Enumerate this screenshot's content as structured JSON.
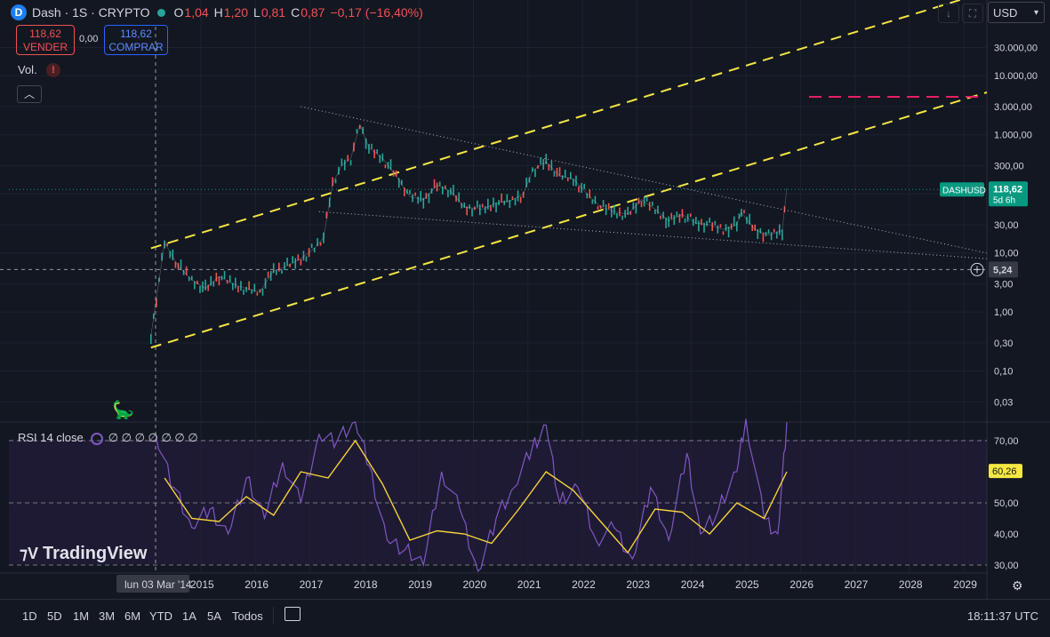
{
  "header": {
    "symbol": "Dash · 1S · CRYPTO",
    "ohlc": [
      {
        "label": "O",
        "value": "1,04"
      },
      {
        "label": "H",
        "value": "1,20"
      },
      {
        "label": "L",
        "value": "0,81"
      },
      {
        "label": "C",
        "value": "0,87"
      }
    ],
    "change": "−0,17 (−16,40%)",
    "sell_price": "118,62",
    "sell_label": "VENDER",
    "spread": "0,00",
    "buy_price": "118,62",
    "buy_label": "COMPRAR",
    "volume_label": "Vol.",
    "currency": "USD"
  },
  "colors": {
    "background": "#131722",
    "channel": "#f5e642",
    "candle_up": "#26a69a",
    "candle_down": "#ef5350",
    "rsi_line": "#7e57c2",
    "rsi_ma": "#f5d23c",
    "price_badge": "#089981",
    "target_line": "#e91e63"
  },
  "chart_data": [
    {
      "type": "line",
      "scale": "log",
      "y_ticks": [
        "30.000,00",
        "10.000,00",
        "3.000,00",
        "1.000,00",
        "300,00",
        "100,00",
        "30,00",
        "10,00",
        "3,00",
        "1,00",
        "0,30",
        "0,10",
        "0,03"
      ],
      "x_ticks": [
        "2015",
        "2016",
        "2017",
        "2018",
        "2019",
        "2020",
        "2021",
        "2022",
        "2023",
        "2024",
        "2025",
        "2026",
        "2027",
        "2028",
        "2029"
      ],
      "crosshair_date": "lun 03 Mar '14",
      "crosshair_price": "5,24",
      "last_price_label": "DASHUSD",
      "last_price": "118,62",
      "countdown": "5d 6h",
      "series": [
        {
          "x": [
            "2014-02",
            "2014-05",
            "2014-08",
            "2014-11",
            "2015-02",
            "2015-05",
            "2015-08",
            "2015-11",
            "2016-02",
            "2016-05",
            "2016-08",
            "2016-11",
            "2017-02",
            "2017-04",
            "2017-06",
            "2017-08",
            "2017-10",
            "2017-12",
            "2018-02",
            "2018-05",
            "2018-08",
            "2018-11",
            "2019-02",
            "2019-05",
            "2019-08",
            "2019-11",
            "2020-03",
            "2020-06",
            "2020-09",
            "2020-12",
            "2021-02",
            "2021-05",
            "2021-08",
            "2021-11",
            "2022-02",
            "2022-05",
            "2022-08",
            "2022-11",
            "2023-02",
            "2023-05",
            "2023-08",
            "2023-11",
            "2024-02",
            "2024-05",
            "2024-08",
            "2024-11",
            "2024-12",
            "2025-03",
            "2025-06",
            "2025-09",
            "2025-10"
          ],
          "y": [
            0.4,
            15,
            6,
            3.5,
            2.5,
            4,
            3,
            2.5,
            2.2,
            5,
            6,
            8,
            12,
            18,
            150,
            300,
            400,
            1500,
            600,
            400,
            200,
            90,
            80,
            140,
            110,
            60,
            55,
            70,
            75,
            100,
            250,
            350,
            200,
            180,
            100,
            60,
            50,
            45,
            80,
            55,
            35,
            45,
            32,
            30,
            25,
            30,
            48,
            25,
            20,
            24,
            125
          ]
        }
      ],
      "channel_upper": {
        "x": [
          "2014-02",
          "2026-02"
        ],
        "y": [
          12,
          30000
        ]
      },
      "channel_lower": {
        "x": [
          "2014-02",
          "2026-02"
        ],
        "y": [
          0.25,
          600
        ]
      },
      "wedge_upper": {
        "x": [
          "2016-11",
          "2029-06"
        ],
        "y": [
          3000,
          10
        ]
      },
      "wedge_lower": {
        "x": [
          "2017-03",
          "2029-06"
        ],
        "y": [
          50,
          8
        ]
      }
    },
    {
      "type": "line",
      "title": "RSI 14 close",
      "values_text": "∅ ∅ ∅ ∅ ∅ ∅ ∅",
      "y_ticks": [
        "70,00",
        "60,00",
        "50,00",
        "40,00",
        "30,00"
      ],
      "current_value": "60,26",
      "ylim": [
        28,
        75
      ],
      "series": [
        {
          "x": [
            "2014-03",
            "2014-07",
            "2014-11",
            "2015-03",
            "2015-07",
            "2015-11",
            "2016-03",
            "2016-07",
            "2016-11",
            "2017-03",
            "2017-07",
            "2017-11",
            "2018-02",
            "2018-06",
            "2018-10",
            "2019-02",
            "2019-06",
            "2019-10",
            "2020-02",
            "2020-06",
            "2020-10",
            "2021-02",
            "2021-05",
            "2021-08",
            "2021-12",
            "2022-04",
            "2022-08",
            "2022-12",
            "2023-04",
            "2023-08",
            "2023-12",
            "2024-03",
            "2024-07",
            "2024-11",
            "2025-01",
            "2025-05",
            "2025-08",
            "2025-10"
          ],
          "y": [
            72,
            55,
            42,
            48,
            40,
            58,
            45,
            63,
            50,
            72,
            70,
            76,
            62,
            38,
            35,
            30,
            60,
            48,
            28,
            45,
            55,
            68,
            75,
            50,
            55,
            38,
            42,
            32,
            55,
            38,
            66,
            40,
            48,
            60,
            77,
            45,
            40,
            76
          ]
        },
        {
          "x": [
            "2014-05",
            "2014-11",
            "2015-05",
            "2015-11",
            "2016-05",
            "2016-11",
            "2017-05",
            "2017-11",
            "2018-05",
            "2018-11",
            "2019-05",
            "2019-11",
            "2020-05",
            "2020-11",
            "2021-05",
            "2021-11",
            "2022-05",
            "2022-11",
            "2023-05",
            "2023-11",
            "2024-05",
            "2024-11",
            "2025-05",
            "2025-10"
          ],
          "y": [
            58,
            45,
            44,
            52,
            46,
            60,
            58,
            70,
            56,
            38,
            41,
            40,
            37,
            48,
            60,
            54,
            44,
            34,
            48,
            47,
            40,
            50,
            45,
            60
          ]
        }
      ]
    }
  ],
  "rsi_title": "RSI 14 close",
  "watermark": "TradingView",
  "timeframes": [
    "1D",
    "5D",
    "1M",
    "3M",
    "6M",
    "YTD",
    "1A",
    "5A",
    "Todos"
  ],
  "clock": "18:11:37 UTC"
}
